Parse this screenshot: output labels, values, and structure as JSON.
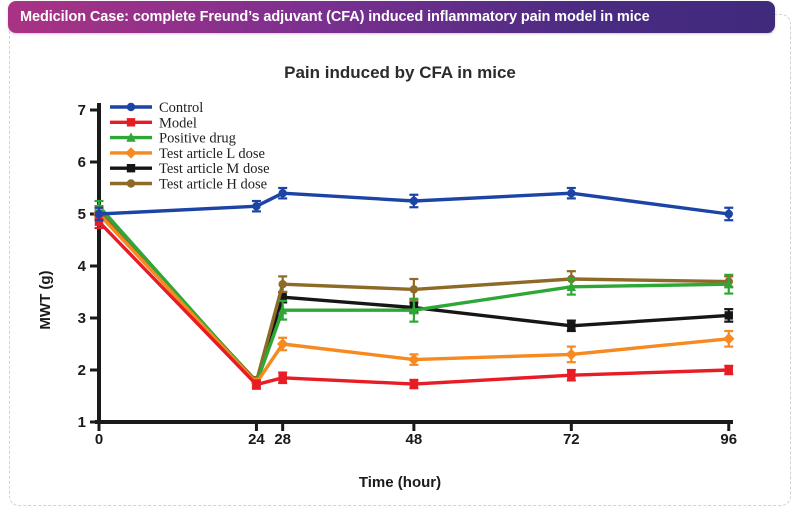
{
  "banner": {
    "title": "Medicilon Case: complete Freund’s adjuvant (CFA) induced inflammatory pain model in mice"
  },
  "chart_data": {
    "type": "line",
    "title": "Pain induced by CFA in mice",
    "xlabel": "Time (hour)",
    "ylabel": "MWT (g)",
    "x": [
      0,
      24,
      28,
      48,
      72,
      96
    ],
    "x_tick_labels": [
      "0",
      "24",
      "28",
      "48",
      "72",
      "96"
    ],
    "y_ticks": [
      1,
      2,
      3,
      4,
      5,
      6,
      7
    ],
    "ylim": [
      1,
      7
    ],
    "grid": false,
    "legend_position": "top-left-inside",
    "error_bars": true,
    "series": [
      {
        "name": "Control",
        "color": "#1c44a5",
        "marker": "circle",
        "values": [
          5.0,
          5.15,
          5.4,
          5.25,
          5.4,
          5.0
        ],
        "errors": [
          0.12,
          0.1,
          0.1,
          0.12,
          0.1,
          0.12
        ]
      },
      {
        "name": "Model",
        "color": "#e81c24",
        "marker": "square",
        "values": [
          4.85,
          1.72,
          1.85,
          1.73,
          1.9,
          2.0
        ],
        "errors": [
          0.12,
          0.08,
          0.1,
          0.08,
          0.1,
          0.08
        ]
      },
      {
        "name": "Positive drug",
        "color": "#2fa737",
        "marker": "triangle",
        "values": [
          5.15,
          1.75,
          3.15,
          3.15,
          3.6,
          3.65
        ],
        "errors": [
          0.1,
          0.08,
          0.18,
          0.22,
          0.15,
          0.18
        ]
      },
      {
        "name": "Test article L dose",
        "color": "#f6891f",
        "marker": "diamond",
        "values": [
          5.0,
          1.75,
          2.5,
          2.2,
          2.3,
          2.6
        ],
        "errors": [
          0.1,
          0.08,
          0.12,
          0.1,
          0.15,
          0.15
        ]
      },
      {
        "name": "Test article M dose",
        "color": "#161616",
        "marker": "square",
        "values": [
          5.0,
          1.78,
          3.4,
          3.2,
          2.85,
          3.05
        ],
        "errors": [
          0.1,
          0.08,
          0.1,
          0.1,
          0.1,
          0.12
        ]
      },
      {
        "name": "Test article H dose",
        "color": "#8d6a28",
        "marker": "circle",
        "values": [
          5.05,
          1.78,
          3.65,
          3.55,
          3.75,
          3.7
        ],
        "errors": [
          0.1,
          0.08,
          0.15,
          0.2,
          0.15,
          0.1
        ]
      }
    ]
  }
}
